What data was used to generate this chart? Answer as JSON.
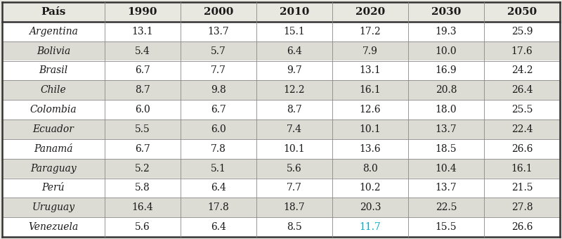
{
  "columns": [
    "País",
    "1990",
    "2000",
    "2010",
    "2020",
    "2030",
    "2050"
  ],
  "rows": [
    [
      "Argentina",
      "13.1",
      "13.7",
      "15.1",
      "17.2",
      "19.3",
      "25.9"
    ],
    [
      "Bolivia",
      "5.4",
      "5.7",
      "6.4",
      "7.9",
      "10.0",
      "17.6"
    ],
    [
      "Brasil",
      "6.7",
      "7.7",
      "9.7",
      "13.1",
      "16.9",
      "24.2"
    ],
    [
      "Chile",
      "8.7",
      "9.8",
      "12.2",
      "16.1",
      "20.8",
      "26.4"
    ],
    [
      "Colombia",
      "6.0",
      "6.7",
      "8.7",
      "12.6",
      "18.0",
      "25.5"
    ],
    [
      "Ecuador",
      "5.5",
      "6.0",
      "7.4",
      "10.1",
      "13.7",
      "22.4"
    ],
    [
      "Panamá",
      "6.7",
      "7.8",
      "10.1",
      "13.6",
      "18.5",
      "26.6"
    ],
    [
      "Paraguay",
      "5.2",
      "5.1",
      "5.6",
      "8.0",
      "10.4",
      "16.1"
    ],
    [
      "Perú",
      "5.8",
      "6.4",
      "7.7",
      "10.2",
      "13.7",
      "21.5"
    ],
    [
      "Uruguay",
      "16.4",
      "17.8",
      "18.7",
      "20.3",
      "22.5",
      "27.8"
    ],
    [
      "Venezuela",
      "5.6",
      "6.4",
      "8.5",
      "11.7",
      "15.5",
      "26.6"
    ]
  ],
  "header_text_color": "#1a1a1a",
  "body_text_color": "#1a1a1a",
  "special_cell_row": 10,
  "special_cell_col": 4,
  "special_text_color": "#00aacc",
  "background_color": "#e8e8e0",
  "header_bg": "#e8e8e0",
  "row_bg_odd": "#ffffff",
  "row_bg_even": "#dcdcd4",
  "border_color_thick": "#333333",
  "border_color_thin": "#888888",
  "header_fontsize": 11,
  "body_fontsize": 10,
  "col_rel_widths": [
    1.35,
    1.0,
    1.0,
    1.0,
    1.0,
    1.0,
    1.0
  ]
}
